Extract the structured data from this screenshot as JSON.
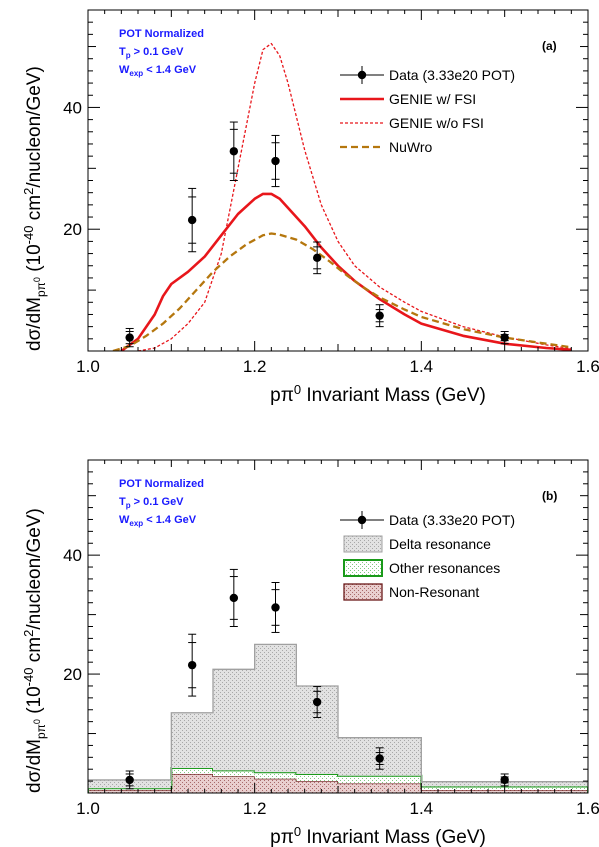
{
  "figure_colors": {
    "data": "#000000",
    "genie_fsi": "#e8161b",
    "genie_nofsi": "#e8161b",
    "nuwro": "#b5770e",
    "delta_fill": "#e2e2e2",
    "delta_edge": "#a0a0a0",
    "other_fill": "#ffffff",
    "other_edge": "#1a9a1a",
    "nonres_fill": "#e9cfcf",
    "nonres_edge": "#6b1a1a",
    "annotation": "#1a1aff"
  },
  "chart_data": [
    {
      "panel": "(a)",
      "type": "line",
      "xlabel_main": "pπ",
      "xlabel_sup": "0",
      "xlabel_rest": " Invariant Mass (GeV)",
      "ylabel_a": "dσ/dM",
      "ylabel_sub": "pπ",
      "ylabel_subsup": "0",
      "ylabel_b": " (10",
      "ylabel_exp": "-40",
      "ylabel_c": " cm",
      "ylabel_exp2": "2",
      "ylabel_d": "/nucleon/GeV)",
      "xlim": [
        1.0,
        1.6
      ],
      "ylim": [
        0,
        56
      ],
      "x_ticks": [
        1.0,
        1.2,
        1.4,
        1.6
      ],
      "x_tick_labels": [
        "1.0",
        "1.2",
        "1.4",
        "1.6"
      ],
      "y_ticks": [
        20,
        40
      ],
      "y_tick_labels": [
        "20",
        "40"
      ],
      "annotations": {
        "line1": "POT Normalized",
        "line2_main": "T",
        "line2_sub": "p",
        "line2_rest": " > 0.1 GeV",
        "line3_main": "W",
        "line3_sub": "exp",
        "line3_rest": " < 1.4 GeV"
      },
      "legend": {
        "placement": "top-right",
        "data": "Data (3.33e20 POT)",
        "genie_fsi": "GENIE w/ FSI",
        "genie_nofsi": "GENIE w/o FSI",
        "nuwro": "NuWro"
      },
      "data_points": [
        {
          "x": 1.05,
          "y": 2.2,
          "err_stat": 1.0,
          "err_tot": 1.5
        },
        {
          "x": 1.125,
          "y": 21.5,
          "err_stat": 3.8,
          "err_tot": 5.2
        },
        {
          "x": 1.175,
          "y": 32.8,
          "err_stat": 3.6,
          "err_tot": 4.8
        },
        {
          "x": 1.225,
          "y": 31.2,
          "err_stat": 3.0,
          "err_tot": 4.2
        },
        {
          "x": 1.275,
          "y": 15.3,
          "err_stat": 1.8,
          "err_tot": 2.6
        },
        {
          "x": 1.35,
          "y": 5.8,
          "err_stat": 1.0,
          "err_tot": 1.8
        },
        {
          "x": 1.5,
          "y": 2.2,
          "err_stat": 0.5,
          "err_tot": 1.0
        }
      ],
      "series": [
        {
          "key": "genie_fsi",
          "x": [
            1.04,
            1.06,
            1.08,
            1.09,
            1.1,
            1.12,
            1.14,
            1.16,
            1.18,
            1.2,
            1.21,
            1.22,
            1.23,
            1.24,
            1.26,
            1.28,
            1.3,
            1.32,
            1.35,
            1.38,
            1.4,
            1.45,
            1.5,
            1.55,
            1.58
          ],
          "y": [
            0.0,
            2.0,
            6.0,
            9.0,
            11.0,
            13.0,
            15.5,
            19.0,
            22.5,
            25.0,
            25.8,
            25.8,
            25.0,
            23.5,
            20.5,
            17.0,
            14.0,
            11.5,
            8.5,
            6.0,
            4.5,
            2.5,
            1.2,
            0.5,
            0.2
          ]
        },
        {
          "key": "genie_nofsi",
          "x": [
            1.06,
            1.08,
            1.1,
            1.12,
            1.14,
            1.16,
            1.18,
            1.2,
            1.21,
            1.22,
            1.23,
            1.24,
            1.26,
            1.28,
            1.3,
            1.32,
            1.35,
            1.38,
            1.4,
            1.45,
            1.5,
            1.55,
            1.58
          ],
          "y": [
            0.0,
            0.5,
            2.0,
            4.5,
            8.0,
            16.0,
            30.0,
            44.0,
            49.5,
            50.5,
            48.5,
            44.0,
            33.0,
            24.0,
            18.0,
            14.0,
            10.5,
            8.0,
            6.5,
            4.0,
            2.3,
            1.0,
            0.4
          ]
        },
        {
          "key": "nuwro",
          "x": [
            1.03,
            1.05,
            1.07,
            1.09,
            1.11,
            1.13,
            1.15,
            1.17,
            1.19,
            1.21,
            1.22,
            1.23,
            1.25,
            1.27,
            1.29,
            1.31,
            1.33,
            1.35,
            1.38,
            1.4,
            1.45,
            1.5,
            1.55,
            1.58
          ],
          "y": [
            0.0,
            0.8,
            2.5,
            4.5,
            7.0,
            10.0,
            13.0,
            15.5,
            17.5,
            19.0,
            19.3,
            19.1,
            18.3,
            16.7,
            14.7,
            12.5,
            10.5,
            8.8,
            6.8,
            5.6,
            3.6,
            2.2,
            1.2,
            0.6
          ]
        }
      ]
    },
    {
      "panel": "(b)",
      "type": "bar",
      "xlabel_main": "pπ",
      "xlabel_sup": "0",
      "xlabel_rest": " Invariant Mass (GeV)",
      "ylabel_a": "dσ/dM",
      "ylabel_sub": "pπ",
      "ylabel_subsup": "0",
      "ylabel_b": " (10",
      "ylabel_exp": "-40",
      "ylabel_c": " cm",
      "ylabel_exp2": "2",
      "ylabel_d": "/nucleon/GeV)",
      "xlim": [
        1.0,
        1.6
      ],
      "ylim": [
        0,
        56
      ],
      "x_ticks": [
        1.0,
        1.2,
        1.4,
        1.6
      ],
      "x_tick_labels": [
        "1.0",
        "1.2",
        "1.4",
        "1.6"
      ],
      "y_ticks": [
        20,
        40
      ],
      "y_tick_labels": [
        "20",
        "40"
      ],
      "annotations": {
        "line1": "POT Normalized",
        "line2_main": "T",
        "line2_sub": "p",
        "line2_rest": " > 0.1 GeV",
        "line3_main": "W",
        "line3_sub": "exp",
        "line3_rest": " < 1.4 GeV"
      },
      "legend": {
        "placement": "top-right",
        "data": "Data (3.33e20 POT)",
        "delta": "Delta resonance",
        "other": "Other resonances",
        "nonres": "Non-Resonant"
      },
      "data_points": [
        {
          "x": 1.05,
          "y": 2.2,
          "err_stat": 1.0,
          "err_tot": 1.5
        },
        {
          "x": 1.125,
          "y": 21.5,
          "err_stat": 3.8,
          "err_tot": 5.2
        },
        {
          "x": 1.175,
          "y": 32.8,
          "err_stat": 3.6,
          "err_tot": 4.8
        },
        {
          "x": 1.225,
          "y": 31.2,
          "err_stat": 3.0,
          "err_tot": 4.2
        },
        {
          "x": 1.275,
          "y": 15.3,
          "err_stat": 1.8,
          "err_tot": 2.6
        },
        {
          "x": 1.35,
          "y": 5.8,
          "err_stat": 1.0,
          "err_tot": 1.8
        },
        {
          "x": 1.5,
          "y": 2.2,
          "err_stat": 0.5,
          "err_tot": 1.0
        }
      ],
      "bin_edges": [
        1.0,
        1.1,
        1.15,
        1.2,
        1.25,
        1.3,
        1.4,
        1.6
      ],
      "stack": [
        {
          "key": "nonres",
          "values": [
            0.5,
            3.2,
            2.8,
            2.4,
            2.0,
            1.6,
            0.5
          ]
        },
        {
          "key": "other",
          "values": [
            0.3,
            1.0,
            1.0,
            1.1,
            1.2,
            1.3,
            0.6
          ]
        },
        {
          "key": "delta",
          "values": [
            1.4,
            9.3,
            17.0,
            21.5,
            14.8,
            6.4,
            0.8
          ]
        }
      ]
    }
  ]
}
